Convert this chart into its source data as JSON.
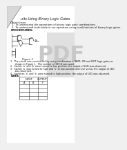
{
  "bg_color": "#f0f0f0",
  "page_color": "#ffffff",
  "title_text": "uits Using Binary Logic Gates",
  "obj1": "To understand the operations of binary logic gate combinations.",
  "obj2": "To understand truth table in our operation using combinations of binary logic gates.",
  "proc_header": "PROCEDURES:",
  "figure_label": "Figure 1",
  "steps": [
    "1.  The circuit was constructed by using combination of AND, OR and NOT logic gates as",
    "      shown in Figure 1.  The resistor of 330 Ω was used.",
    "2.  Switch ‘a’ and ‘b’ were turned to low position, the output of LED was observed.",
    "3.  Switch ‘a’ was turned to high and ‘b’ to low position and vice versa, the output of LED",
    "      was observed.",
    "4.  Switches ‘a’ and ‘b’ were turned to high position, the output of LED was observed."
  ],
  "data_label": "DATA:",
  "col_input": "INPUT",
  "col_output": "OUTPUT",
  "col_a": "A",
  "col_b": "B",
  "col_f": "F",
  "text_color": "#111111",
  "gray": "#555555",
  "light_gray": "#aaaaaa",
  "pdf_color": "#e8e8e8",
  "pdf_text_color": "#cccccc"
}
